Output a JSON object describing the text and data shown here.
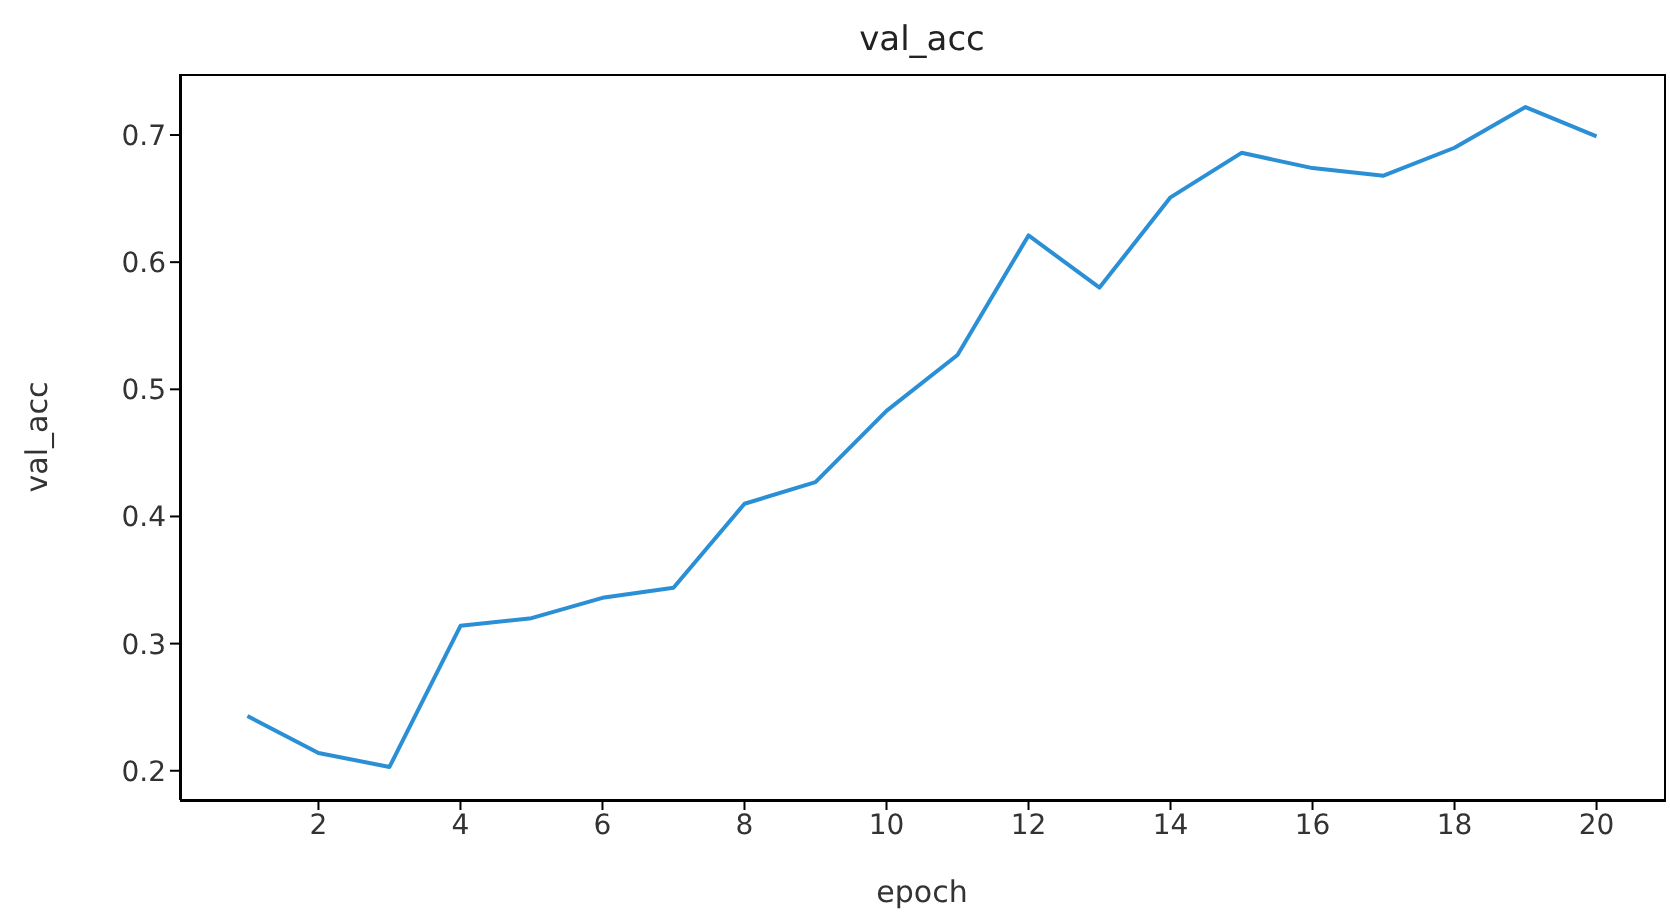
{
  "chart_data": {
    "type": "line",
    "title": "val_acc",
    "xlabel": "epoch",
    "ylabel": "val_acc",
    "x": [
      1,
      2,
      3,
      4,
      5,
      6,
      7,
      8,
      9,
      10,
      11,
      12,
      13,
      14,
      15,
      16,
      17,
      18,
      19,
      20
    ],
    "series": [
      {
        "color": "#2b8fd6",
        "values": [
          0.243,
          0.214,
          0.203,
          0.314,
          0.32,
          0.336,
          0.344,
          0.41,
          0.427,
          0.483,
          0.527,
          0.621,
          0.58,
          0.651,
          0.686,
          0.674,
          0.668,
          0.69,
          0.722,
          0.699
        ]
      }
    ],
    "xlim": [
      0.05,
      20.95
    ],
    "xticks": [
      2,
      4,
      6,
      8,
      10,
      12,
      14,
      16,
      18,
      20
    ],
    "ylim": [
      0.177,
      0.748
    ],
    "yticks": [
      0.2,
      0.3,
      0.4,
      0.5,
      0.6,
      0.7
    ],
    "grid": false,
    "legend": false,
    "marker": "none",
    "line_style": "solid"
  }
}
